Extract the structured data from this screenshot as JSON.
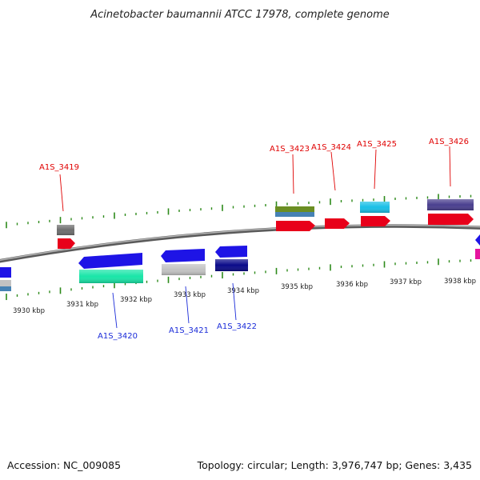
{
  "title": "Acinetobacter baumannii ATCC 17978, complete genome",
  "footer": {
    "accession": "Accession: NC_009085",
    "summary": "Topology: circular; Length: 3,976,747 bp; Genes: 3,435"
  },
  "colors": {
    "backbone": "#8a8a8a",
    "ticks": "#2d8a1a",
    "label_forward": "#e00000",
    "label_reverse": "#1a2bd8"
  },
  "tick_labels": [
    "3930 kbp",
    "3931 kbp",
    "3932 kbp",
    "3933 kbp",
    "3934 kbp",
    "3935 kbp",
    "3936 kbp",
    "3937 kbp",
    "3938 kbp"
  ],
  "gene_labels": {
    "top": [
      "A1S_3419",
      "A1S_3423",
      "A1S_3424",
      "A1S_3425",
      "A1S_3426"
    ],
    "bottom": [
      "A1S_3420",
      "A1S_3421",
      "A1S_3422"
    ]
  },
  "feature_colors": [
    "#e8001a",
    "#1e14e6",
    "#19e6a8",
    "#c2c2c2",
    "#0b0b8a",
    "#6b8e23",
    "#4682b4",
    "#19bfe6",
    "#4a3f8f",
    "#6e6e6e",
    "#e6149e"
  ]
}
